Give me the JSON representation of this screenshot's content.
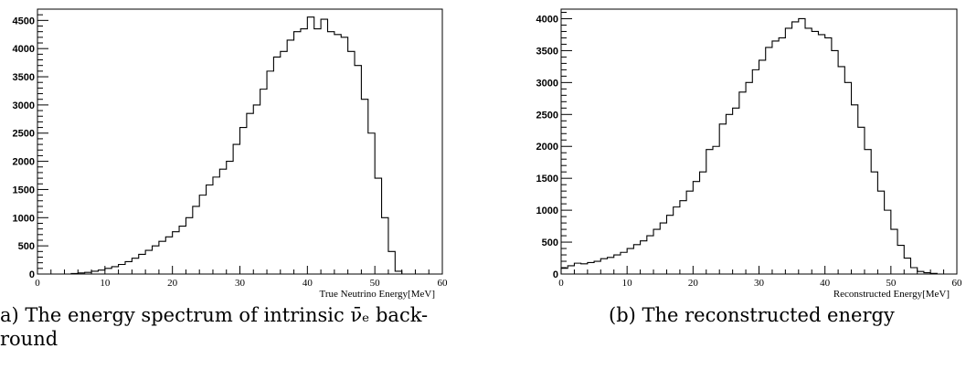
{
  "charts": [
    {
      "caption": {
        "line1": "a)   The energy spectrum of intrinsic ν̄ₑ back-",
        "line2": "round"
      }
    },
    {
      "caption": {
        "line1": "(b) The reconstructed energy"
      }
    }
  ],
  "chart_data": [
    {
      "type": "bar",
      "histogram": true,
      "title": "",
      "xlabel": "True Neutrino Energy[MeV]",
      "ylabel": "",
      "xlim": [
        0,
        60
      ],
      "ylim": [
        0,
        4700
      ],
      "xticks": [
        0,
        10,
        20,
        30,
        40,
        50,
        60
      ],
      "yticks": [
        0,
        500,
        1000,
        1500,
        2000,
        2500,
        3000,
        3500,
        4000,
        4500
      ],
      "bin_width": 1,
      "bin_edges_start": 0,
      "grid": false,
      "values": [
        0,
        0,
        0,
        0,
        0,
        10,
        20,
        30,
        50,
        70,
        100,
        130,
        170,
        220,
        280,
        350,
        420,
        500,
        580,
        660,
        750,
        850,
        1000,
        1200,
        1400,
        1580,
        1720,
        1860,
        2000,
        2300,
        2600,
        2850,
        3000,
        3280,
        3600,
        3850,
        3950,
        4150,
        4300,
        4350,
        4560,
        4350,
        4520,
        4300,
        4250,
        4200,
        3950,
        3700,
        3100,
        2500,
        1700,
        1000,
        400,
        50,
        0,
        0,
        0,
        0,
        0,
        0
      ]
    },
    {
      "type": "bar",
      "histogram": true,
      "title": "",
      "xlabel": "Reconstructed Energy[MeV]",
      "ylabel": "",
      "xlim": [
        0,
        60
      ],
      "ylim": [
        0,
        4150
      ],
      "xticks": [
        0,
        10,
        20,
        30,
        40,
        50,
        60
      ],
      "yticks": [
        0,
        500,
        1000,
        1500,
        2000,
        2500,
        3000,
        3500,
        4000
      ],
      "bin_width": 1,
      "bin_edges_start": 0,
      "grid": false,
      "values": [
        90,
        130,
        170,
        160,
        180,
        200,
        240,
        260,
        300,
        340,
        400,
        460,
        520,
        600,
        700,
        800,
        920,
        1050,
        1150,
        1300,
        1450,
        1600,
        1950,
        2000,
        2350,
        2500,
        2600,
        2850,
        3000,
        3200,
        3350,
        3550,
        3650,
        3700,
        3850,
        3950,
        4000,
        3850,
        3800,
        3750,
        3700,
        3500,
        3250,
        3000,
        2650,
        2300,
        1950,
        1600,
        1300,
        1000,
        700,
        450,
        250,
        100,
        40,
        20,
        10,
        0,
        0,
        0
      ]
    }
  ]
}
